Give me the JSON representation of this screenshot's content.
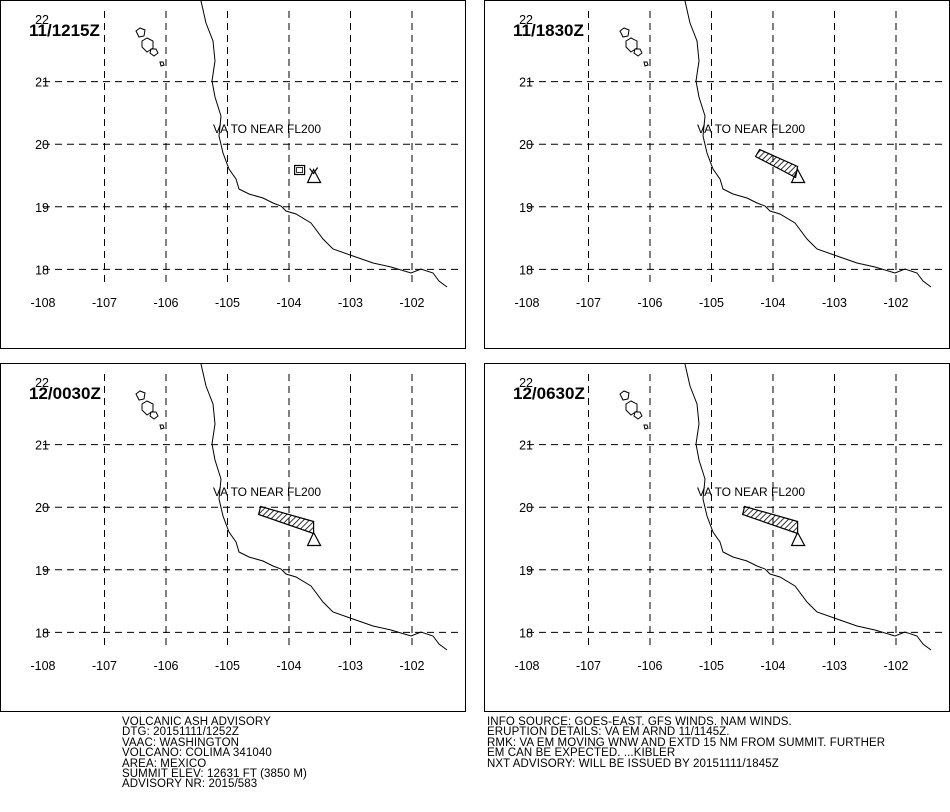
{
  "panels": [
    {
      "time": "11/1215Z",
      "label": "VA TO NEAR FL200",
      "ash": "box"
    },
    {
      "time": "11/1830Z",
      "label": "VA TO NEAR FL200",
      "ash": "short"
    },
    {
      "time": "12/0030Z",
      "label": "VA TO NEAR FL200",
      "ash": "long"
    },
    {
      "time": "12/0630Z",
      "label": "VA TO NEAR FL200",
      "ash": "long"
    }
  ],
  "map": {
    "lon_ticks": [
      "-108",
      "-107",
      "-106",
      "-105",
      "-104",
      "-103",
      "-102"
    ],
    "lat_ticks": [
      "22",
      "21",
      "20",
      "19",
      "18"
    ],
    "lon_range": [
      -108,
      -101.5
    ],
    "lat_range": [
      17.5,
      22.2
    ]
  },
  "volcano": {
    "name": "COLIMA",
    "lon": -103.6,
    "lat": 19.5
  },
  "advisory_left": [
    "VOLCANIC ASH ADVISORY",
    "DTG: 20151111/1252Z",
    "VAAC: WASHINGTON",
    "VOLCANO: COLIMA 341040",
    "AREA: MEXICO",
    "SUMMIT ELEV: 12631 FT (3850 M)",
    "ADVISORY NR: 2015/583"
  ],
  "advisory_right": [
    "INFO SOURCE: GOES-EAST. GFS WINDS. NAM WINDS.",
    "ERUPTION DETAILS: VA EM ARND 11/1145Z.",
    "RMK: VA EM MOVING WNW AND EXTD 15 NM FROM SUMMIT. FURTHER",
    "EM CAN BE EXPECTED. ...KIBLER",
    "NXT ADVISORY: WILL BE ISSUED BY 20151111/1845Z"
  ]
}
